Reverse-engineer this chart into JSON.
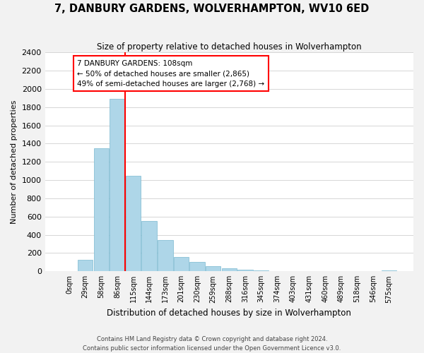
{
  "title": "7, DANBURY GARDENS, WOLVERHAMPTON, WV10 6ED",
  "subtitle": "Size of property relative to detached houses in Wolverhampton",
  "xlabel": "Distribution of detached houses by size in Wolverhampton",
  "ylabel": "Number of detached properties",
  "bar_labels": [
    "0sqm",
    "29sqm",
    "58sqm",
    "86sqm",
    "115sqm",
    "144sqm",
    "173sqm",
    "201sqm",
    "230sqm",
    "259sqm",
    "288sqm",
    "316sqm",
    "345sqm",
    "374sqm",
    "403sqm",
    "431sqm",
    "460sqm",
    "489sqm",
    "518sqm",
    "546sqm",
    "575sqm"
  ],
  "bar_values": [
    0,
    125,
    1350,
    1890,
    1050,
    550,
    340,
    155,
    105,
    60,
    30,
    20,
    10,
    5,
    2,
    1,
    1,
    0,
    0,
    0,
    8
  ],
  "bar_color": "#aed6e8",
  "bar_edge_color": "#7ab8d0",
  "vline_x_index": 4,
  "vline_color": "red",
  "annotation_title": "7 DANBURY GARDENS: 108sqm",
  "annotation_line1": "← 50% of detached houses are smaller (2,865)",
  "annotation_line2": "49% of semi-detached houses are larger (2,768) →",
  "annotation_box_color": "white",
  "annotation_box_edge": "red",
  "ylim": [
    0,
    2400
  ],
  "yticks": [
    0,
    200,
    400,
    600,
    800,
    1000,
    1200,
    1400,
    1600,
    1800,
    2000,
    2200,
    2400
  ],
  "footer1": "Contains HM Land Registry data © Crown copyright and database right 2024.",
  "footer2": "Contains public sector information licensed under the Open Government Licence v3.0.",
  "bg_color": "#f2f2f2",
  "plot_bg_color": "#ffffff"
}
